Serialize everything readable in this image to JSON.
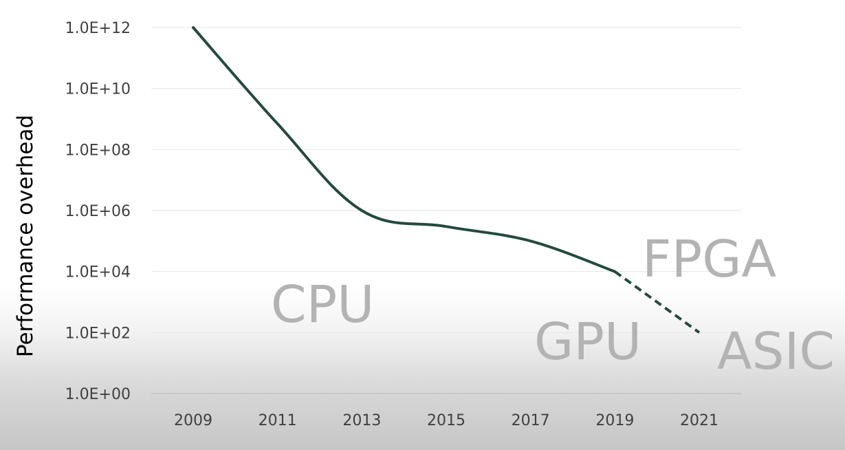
{
  "chart_data": {
    "type": "line",
    "ylabel": "Performance overhead",
    "y_scale": "log",
    "ylim": [
      1,
      1000000000000
    ],
    "xlim": [
      2009,
      2021
    ],
    "x_ticks": [
      "2009",
      "2011",
      "2013",
      "2015",
      "2017",
      "2019",
      "2021"
    ],
    "y_ticks": [
      {
        "value": 1,
        "label": "1.0E+00"
      },
      {
        "value": 100,
        "label": "1.0E+02"
      },
      {
        "value": 10000,
        "label": "1.0E+04"
      },
      {
        "value": 1000000,
        "label": "1.0E+06"
      },
      {
        "value": 100000000,
        "label": "1.0E+08"
      },
      {
        "value": 10000000000,
        "label": "1.0E+10"
      },
      {
        "value": 1000000000000,
        "label": "1.0E+12"
      }
    ],
    "grid": true,
    "series": [
      {
        "style": "solid",
        "color": "#244a40",
        "points": [
          {
            "x": 2009,
            "y": 1000000000000
          },
          {
            "x": 2011,
            "y": 700000000
          },
          {
            "x": 2013,
            "y": 1000000
          },
          {
            "x": 2015,
            "y": 300000
          },
          {
            "x": 2017,
            "y": 100000
          },
          {
            "x": 2019,
            "y": 10000
          }
        ]
      },
      {
        "style": "dashed",
        "color": "#244a40",
        "points": [
          {
            "x": 2019,
            "y": 10000
          },
          {
            "x": 2021,
            "y": 100
          }
        ]
      }
    ],
    "annotations": [
      {
        "id": "cpu",
        "text": "CPU",
        "size": 74
      },
      {
        "id": "fpga",
        "text": "FPGA",
        "size": 74
      },
      {
        "id": "gpu",
        "text": "GPU",
        "size": 74
      },
      {
        "id": "asic",
        "text": "ASIC",
        "size": 74
      }
    ]
  }
}
